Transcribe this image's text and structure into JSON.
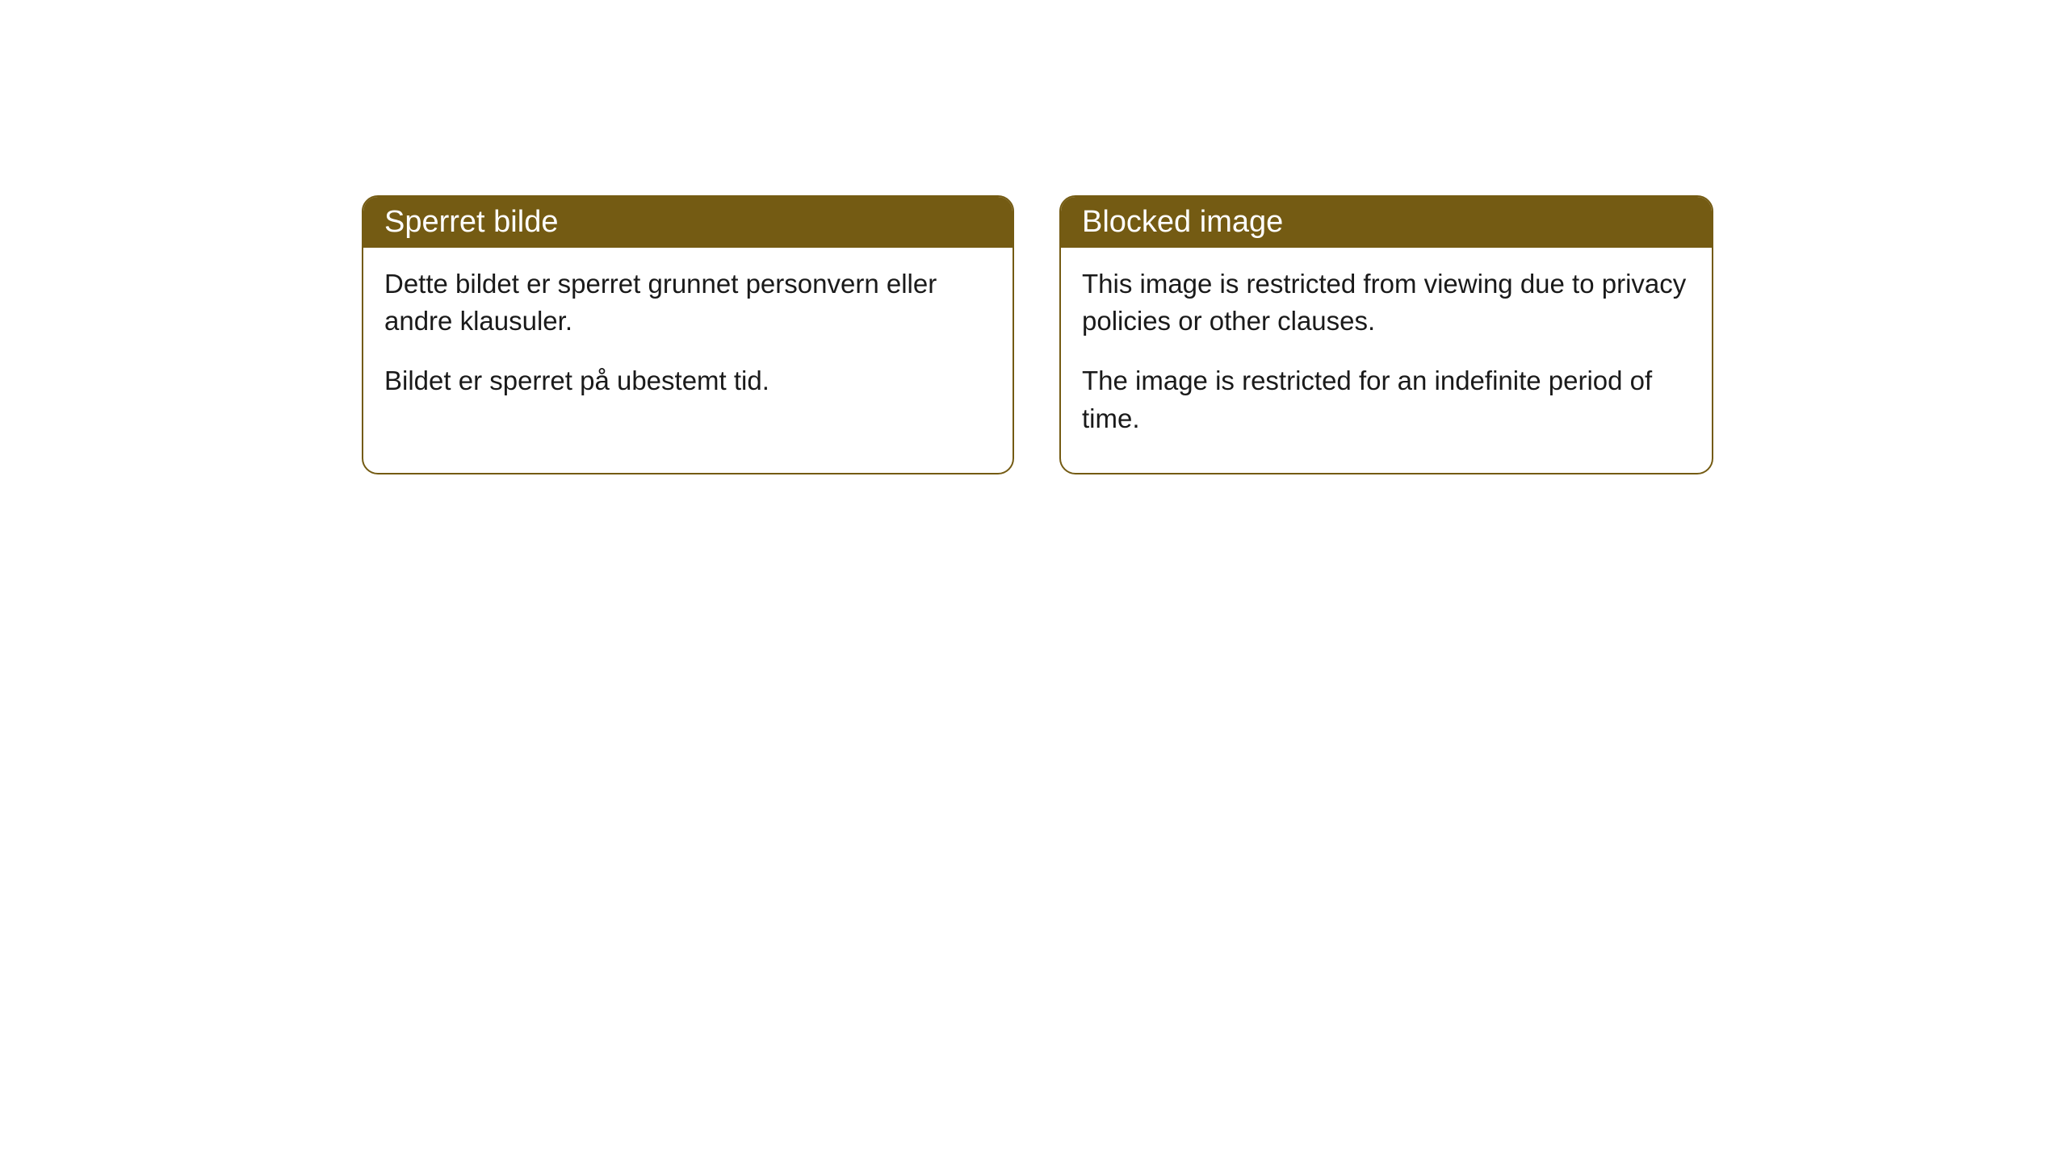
{
  "cards": [
    {
      "title": "Sperret bilde",
      "paragraph1": "Dette bildet er sperret grunnet personvern eller andre klausuler.",
      "paragraph2": "Bildet er sperret på ubestemt tid."
    },
    {
      "title": "Blocked image",
      "paragraph1": "This image is restricted from viewing due to privacy policies or other clauses.",
      "paragraph2": "The image is restricted for an indefinite period of time."
    }
  ],
  "styling": {
    "header_background": "#745b13",
    "header_text_color": "#ffffff",
    "border_color": "#745b13",
    "body_background": "#ffffff",
    "body_text_color": "#1a1a1a",
    "border_radius": 20,
    "title_fontsize": 38,
    "body_fontsize": 33
  }
}
